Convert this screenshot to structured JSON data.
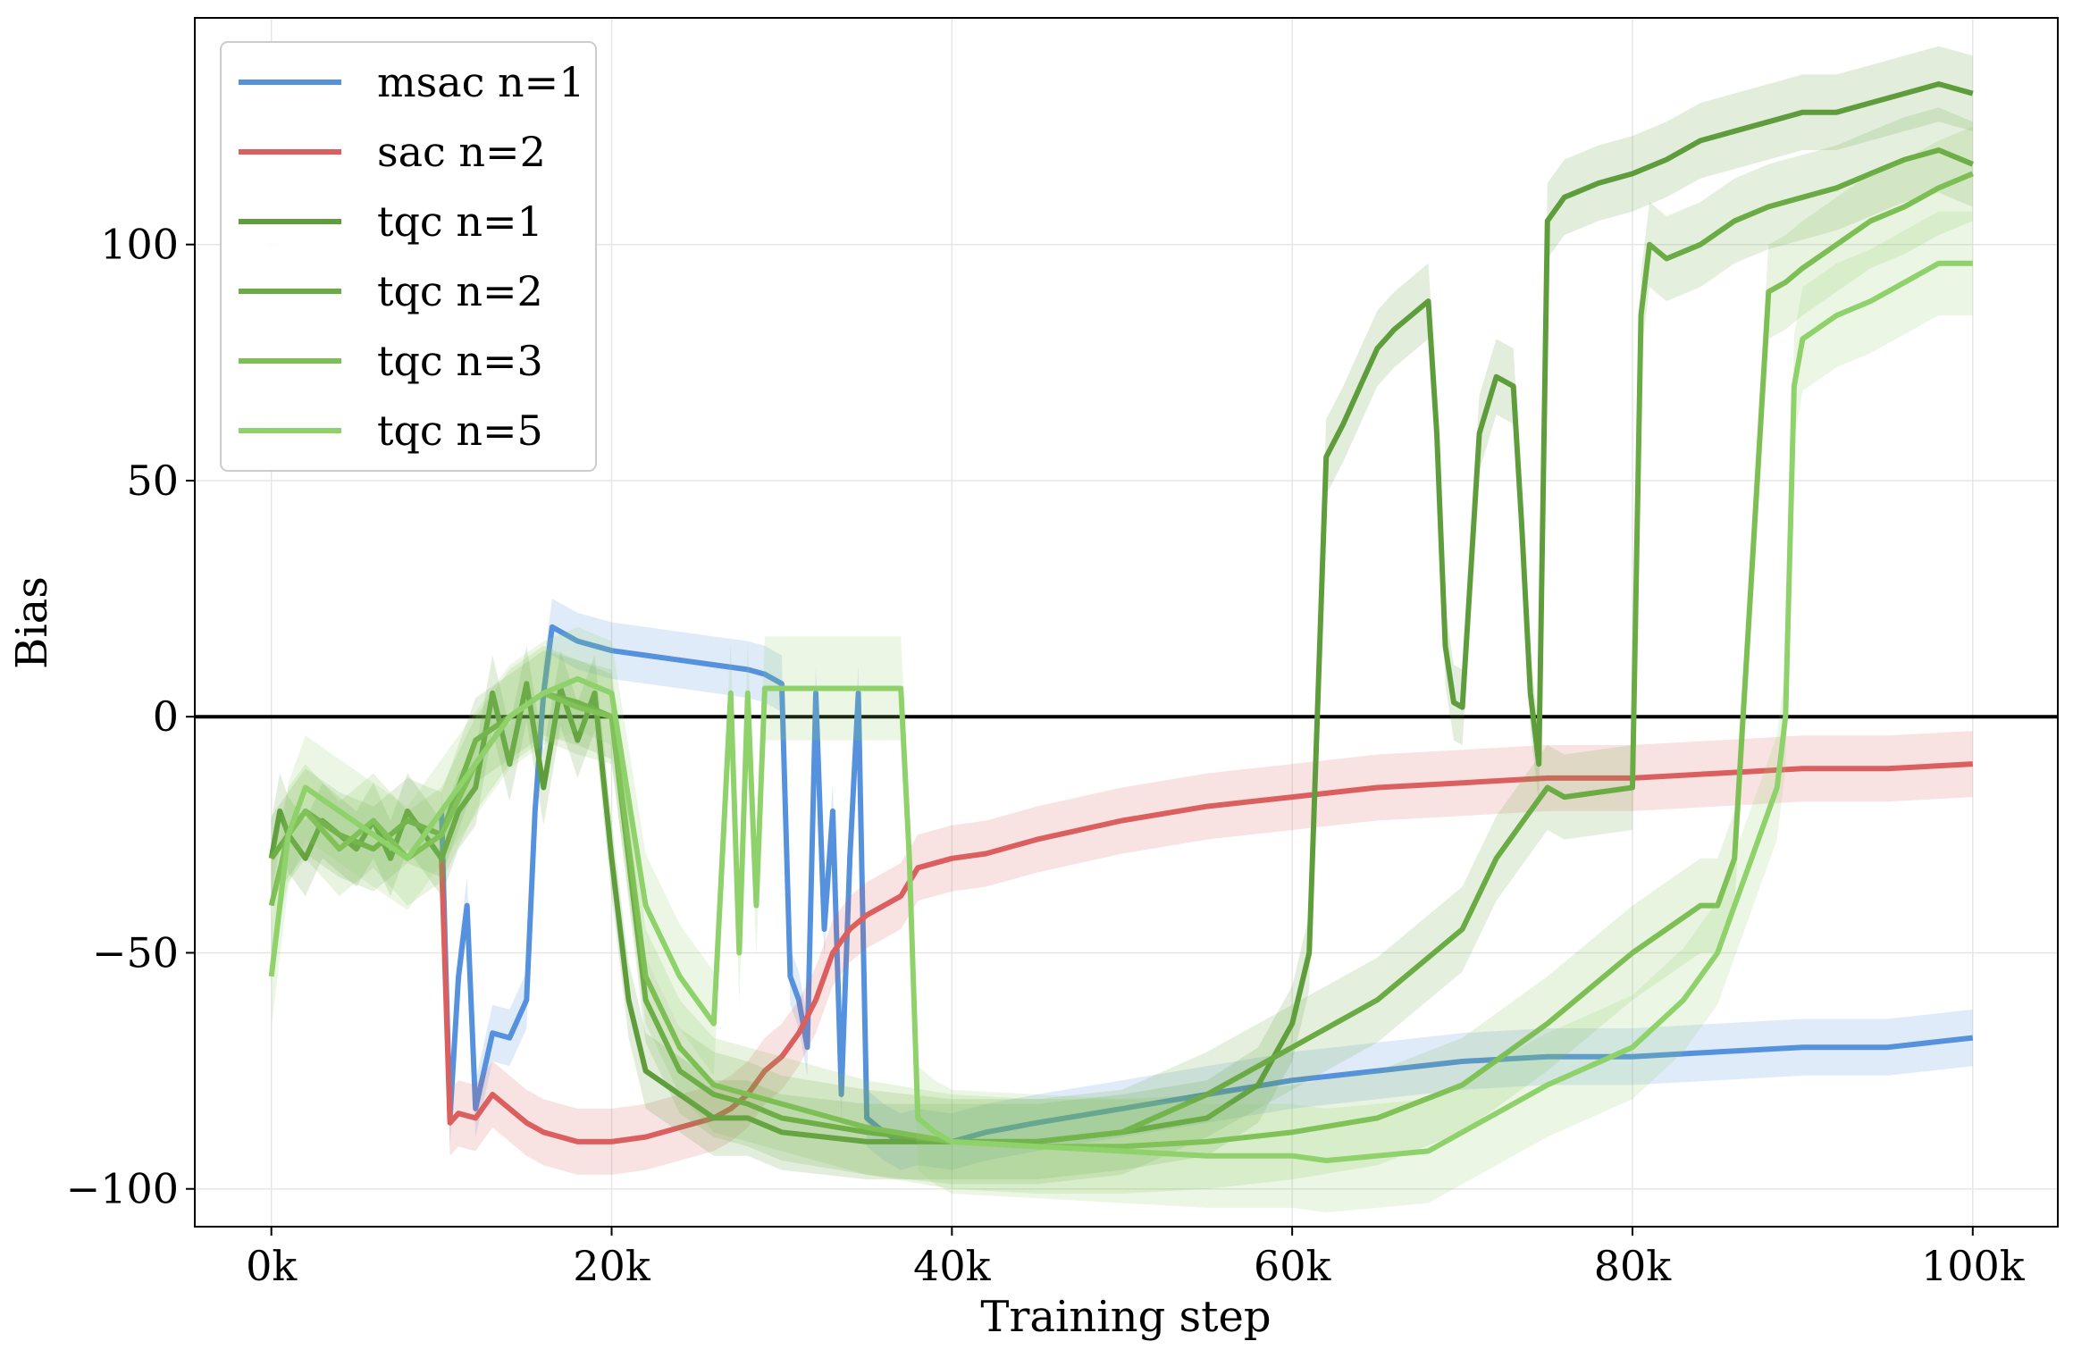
{
  "chart_data": {
    "type": "line",
    "xlabel": "Training step",
    "ylabel": "Bias",
    "xlim": [
      -4500,
      105000
    ],
    "ylim": [
      -108,
      148
    ],
    "xticks": [
      0,
      20000,
      40000,
      60000,
      80000,
      100000
    ],
    "xtick_labels": [
      "0k",
      "20k",
      "40k",
      "60k",
      "80k",
      "100k"
    ],
    "yticks": [
      -100,
      -50,
      0,
      50,
      100
    ],
    "ytick_labels": [
      "−100",
      "−50",
      "0",
      "50",
      "100"
    ],
    "grid": true,
    "hline": 0,
    "legend_position": "top-left",
    "series": [
      {
        "name": "msac n=1",
        "color": "#5591dc",
        "x": [
          10000,
          10500,
          11000,
          11500,
          12000,
          12500,
          13000,
          14000,
          15000,
          15500,
          16000,
          16500,
          17000,
          18000,
          20000,
          22000,
          24000,
          26000,
          28000,
          29000,
          30000,
          30500,
          31000,
          31500,
          32000,
          32500,
          33000,
          33500,
          34000,
          34500,
          35000,
          36000,
          37000,
          38000,
          40000,
          42000,
          45000,
          50000,
          55000,
          60000,
          65000,
          70000,
          75000,
          80000,
          85000,
          90000,
          95000,
          100000
        ],
        "y": [
          -20,
          -85,
          -55,
          -40,
          -83,
          -75,
          -67,
          -68,
          -60,
          -20,
          5,
          19,
          18,
          16,
          14,
          13,
          12,
          11,
          10,
          9,
          7,
          -55,
          -60,
          -70,
          5,
          -45,
          -20,
          -80,
          -30,
          5,
          -85,
          -88,
          -90,
          -89,
          -90,
          -88,
          -86,
          -83,
          -80,
          -77,
          -75,
          -73,
          -72,
          -72,
          -71,
          -70,
          -70,
          -68
        ]
      },
      {
        "name": "sac n=2",
        "color": "#dc5f5f",
        "x": [
          10000,
          10500,
          11000,
          12000,
          13000,
          14000,
          15000,
          16000,
          17000,
          18000,
          20000,
          22000,
          24000,
          26000,
          27000,
          28000,
          29000,
          30000,
          31000,
          32000,
          33000,
          34000,
          35000,
          36000,
          37000,
          38000,
          40000,
          42000,
          45000,
          50000,
          55000,
          60000,
          65000,
          70000,
          75000,
          80000,
          85000,
          90000,
          95000,
          100000
        ],
        "y": [
          -30,
          -86,
          -84,
          -85,
          -80,
          -83,
          -86,
          -88,
          -89,
          -90,
          -90,
          -89,
          -87,
          -85,
          -83,
          -80,
          -75,
          -72,
          -67,
          -60,
          -50,
          -45,
          -42,
          -40,
          -38,
          -32,
          -30,
          -29,
          -26,
          -22,
          -19,
          -17,
          -15,
          -14,
          -13,
          -13,
          -12,
          -11,
          -11,
          -10
        ]
      },
      {
        "name": "tqc n=1",
        "color": "#5f9d3c",
        "x": [
          0,
          500,
          1000,
          2000,
          3000,
          4000,
          5000,
          6000,
          7000,
          8000,
          9000,
          10000,
          11000,
          12000,
          13000,
          14000,
          15000,
          16000,
          17000,
          18000,
          19000,
          20000,
          21000,
          22000,
          24000,
          26000,
          28000,
          30000,
          35000,
          40000,
          45000,
          50000,
          55000,
          58000,
          60000,
          61000,
          62000,
          63000,
          64000,
          65000,
          66000,
          67000,
          68000,
          68500,
          69000,
          69500,
          70000,
          71000,
          72000,
          73000,
          73500,
          74000,
          74500,
          75000,
          76000,
          78000,
          80000,
          82000,
          84000,
          86000,
          88000,
          90000,
          92000,
          94000,
          96000,
          98000,
          100000
        ],
        "y": [
          -30,
          -20,
          -25,
          -30,
          -22,
          -25,
          -28,
          -22,
          -30,
          -20,
          -25,
          -30,
          -20,
          -15,
          5,
          -10,
          7,
          -15,
          6,
          -5,
          5,
          -30,
          -60,
          -75,
          -80,
          -85,
          -85,
          -88,
          -90,
          -90,
          -90,
          -88,
          -85,
          -78,
          -65,
          -50,
          55,
          62,
          70,
          78,
          82,
          85,
          88,
          60,
          15,
          3,
          2,
          60,
          72,
          70,
          40,
          5,
          -10,
          105,
          110,
          113,
          115,
          118,
          122,
          124,
          126,
          128,
          128,
          130,
          132,
          134,
          132
        ]
      },
      {
        "name": "tqc n=2",
        "color": "#6aab44",
        "x": [
          0,
          1000,
          2000,
          4000,
          6000,
          8000,
          10000,
          12000,
          14000,
          16000,
          18000,
          20000,
          21000,
          22000,
          24000,
          26000,
          28000,
          30000,
          35000,
          40000,
          45000,
          50000,
          55000,
          60000,
          65000,
          70000,
          72000,
          74000,
          75000,
          76000,
          78000,
          80000,
          80500,
          81000,
          82000,
          84000,
          86000,
          88000,
          90000,
          92000,
          94000,
          96000,
          98000,
          100000
        ],
        "y": [
          -30,
          -25,
          -20,
          -25,
          -28,
          -22,
          -25,
          -5,
          0,
          5,
          3,
          0,
          -30,
          -60,
          -75,
          -80,
          -82,
          -85,
          -88,
          -90,
          -90,
          -88,
          -80,
          -70,
          -60,
          -45,
          -30,
          -20,
          -15,
          -17,
          -16,
          -15,
          85,
          100,
          97,
          100,
          105,
          108,
          110,
          112,
          115,
          118,
          120,
          117
        ]
      },
      {
        "name": "tqc n=3",
        "color": "#7dbf55",
        "x": [
          0,
          1000,
          2000,
          4000,
          6000,
          8000,
          10000,
          12000,
          14000,
          16000,
          18000,
          20000,
          22000,
          24000,
          26000,
          28000,
          30000,
          35000,
          40000,
          45000,
          50000,
          55000,
          60000,
          65000,
          70000,
          75000,
          80000,
          84000,
          85000,
          86000,
          87000,
          88000,
          89000,
          90000,
          92000,
          94000,
          96000,
          98000,
          100000
        ],
        "y": [
          -40,
          -25,
          -20,
          -28,
          -22,
          -30,
          -25,
          -10,
          0,
          5,
          2,
          0,
          -55,
          -70,
          -78,
          -80,
          -82,
          -87,
          -90,
          -91,
          -91,
          -90,
          -88,
          -85,
          -78,
          -65,
          -50,
          -40,
          -40,
          -30,
          30,
          90,
          92,
          95,
          100,
          105,
          108,
          112,
          115
        ]
      },
      {
        "name": "tqc n=5",
        "color": "#8fd16a",
        "x": [
          0,
          1000,
          2000,
          4000,
          6000,
          8000,
          10000,
          12000,
          14000,
          16000,
          18000,
          20000,
          22000,
          24000,
          26000,
          27000,
          27500,
          28000,
          28500,
          29000,
          30000,
          32000,
          34000,
          36000,
          37000,
          37500,
          38000,
          39000,
          40000,
          45000,
          50000,
          55000,
          60000,
          62000,
          65000,
          68000,
          70000,
          75000,
          80000,
          83000,
          85000,
          86000,
          87000,
          88000,
          88500,
          89000,
          89500,
          90000,
          92000,
          94000,
          96000,
          98000,
          100000
        ],
        "y": [
          -55,
          -25,
          -15,
          -20,
          -25,
          -30,
          -20,
          -10,
          0,
          5,
          8,
          5,
          -40,
          -55,
          -65,
          5,
          -50,
          5,
          -40,
          6,
          6,
          6,
          6,
          6,
          6,
          -30,
          -85,
          -88,
          -90,
          -91,
          -92,
          -93,
          -93,
          -94,
          -93,
          -92,
          -88,
          -78,
          -70,
          -60,
          -50,
          -40,
          -30,
          -20,
          -15,
          0,
          70,
          80,
          85,
          88,
          92,
          96,
          96
        ]
      }
    ]
  }
}
